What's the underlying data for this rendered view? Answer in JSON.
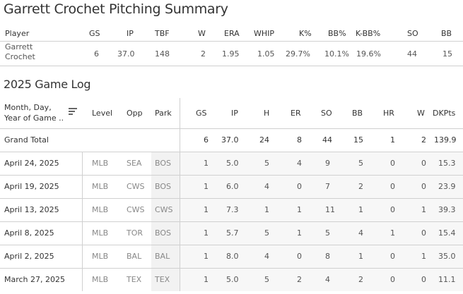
{
  "title": "Garrett Crochet Pitching Summary",
  "summary": {
    "headers": [
      "Player",
      "GS",
      "IP",
      "TBF",
      "W",
      "ERA",
      "WHIP",
      "K%",
      "BB%",
      "K-BB%",
      "SO",
      "BB"
    ],
    "row": {
      "player_line1": "Garrett",
      "player_line2": "Crochet",
      "values": [
        "6",
        "37.0",
        "148",
        "2",
        "1.95",
        "1.05",
        "29.7%",
        "10.1%",
        "19.6%",
        "44",
        "15"
      ]
    }
  },
  "game_log": {
    "title": "2025 Game Log",
    "headers": {
      "date_line1": "Month, Day,",
      "date_line2": "Year of Game ..",
      "level": "Level",
      "opp": "Opp",
      "park": "Park",
      "stats": [
        "GS",
        "IP",
        "H",
        "ER",
        "SO",
        "BB",
        "HR",
        "W",
        "DKPts"
      ]
    },
    "grand_total": {
      "label": "Grand Total",
      "values": [
        "6",
        "37.0",
        "24",
        "8",
        "44",
        "15",
        "1",
        "2",
        "139.9"
      ]
    },
    "rows": [
      {
        "date": "April 24, 2025",
        "level": "MLB",
        "opp": "SEA",
        "park": "BOS",
        "values": [
          "1",
          "5.0",
          "5",
          "4",
          "9",
          "5",
          "0",
          "0",
          "15.3"
        ]
      },
      {
        "date": "April 19, 2025",
        "level": "MLB",
        "opp": "CWS",
        "park": "BOS",
        "values": [
          "1",
          "6.0",
          "4",
          "0",
          "7",
          "2",
          "0",
          "0",
          "23.9"
        ]
      },
      {
        "date": "April 13, 2025",
        "level": "MLB",
        "opp": "CWS",
        "park": "CWS",
        "values": [
          "1",
          "7.3",
          "1",
          "1",
          "11",
          "1",
          "0",
          "1",
          "39.3"
        ]
      },
      {
        "date": "April 8, 2025",
        "level": "MLB",
        "opp": "TOR",
        "park": "BOS",
        "values": [
          "1",
          "5.7",
          "5",
          "1",
          "5",
          "4",
          "1",
          "0",
          "15.4"
        ]
      },
      {
        "date": "April 2, 2025",
        "level": "MLB",
        "opp": "BAL",
        "park": "BAL",
        "values": [
          "1",
          "8.0",
          "4",
          "0",
          "8",
          "1",
          "0",
          "1",
          "35.0"
        ]
      },
      {
        "date": "March 27, 2025",
        "level": "MLB",
        "opp": "TEX",
        "park": "TEX",
        "values": [
          "1",
          "5.0",
          "5",
          "2",
          "4",
          "2",
          "0",
          "0",
          "11.1"
        ]
      }
    ]
  }
}
